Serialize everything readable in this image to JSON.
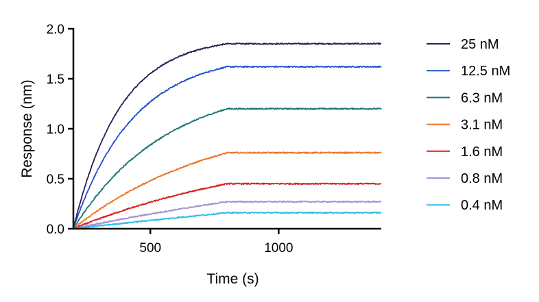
{
  "chart_data": {
    "type": "line",
    "xlabel": "Time (s)",
    "ylabel": "Response (nm)",
    "xlim": [
      200,
      1400
    ],
    "ylim": [
      0,
      2.0
    ],
    "x_ticks": [
      500,
      1000
    ],
    "x_tick_labels": [
      "500",
      "1000"
    ],
    "y_ticks": [
      0,
      0.5,
      1.0,
      1.5,
      2.0
    ],
    "y_tick_labels": [
      "0.0",
      "0.5",
      "1.0",
      "1.5",
      "2.0"
    ],
    "grid": false,
    "legend_position": "right",
    "association_start": 200,
    "dissociation_start": 800,
    "end": 1400,
    "series": [
      {
        "name": "25 nM",
        "color": "#2d1b56",
        "plateau": 1.85,
        "k": 0.0055
      },
      {
        "name": "12.5 nM",
        "color": "#1f4fd1",
        "plateau": 1.62,
        "k": 0.0043
      },
      {
        "name": "6.3 nM",
        "color": "#167478",
        "plateau": 1.2,
        "k": 0.0028
      },
      {
        "name": "3.1 nM",
        "color": "#f07022",
        "plateau": 0.76,
        "k": 0.0018
      },
      {
        "name": "1.6 nM",
        "color": "#d41f1f",
        "plateau": 0.45,
        "k": 0.0012
      },
      {
        "name": "0.8 nM",
        "color": "#a68fd4",
        "plateau": 0.27,
        "k": 0.0006
      },
      {
        "name": "0.4 nM",
        "color": "#2bbde8",
        "plateau": 0.16,
        "k": 0.0003
      }
    ]
  }
}
